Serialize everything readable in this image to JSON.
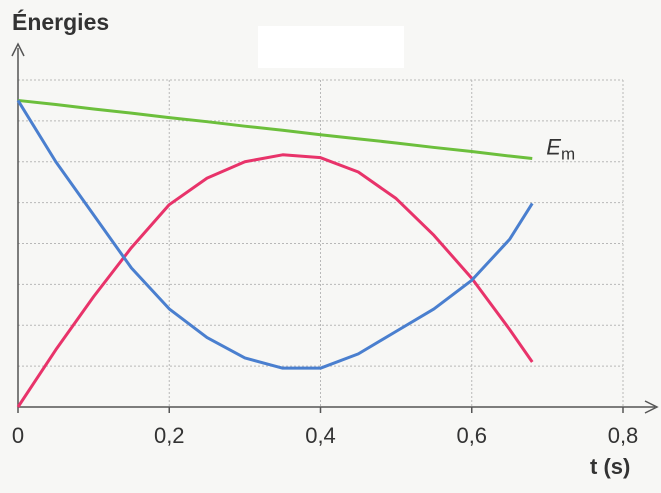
{
  "chart_data": {
    "type": "line",
    "title": "Énergies",
    "x_label": "t (s)",
    "x": [
      0,
      0.05,
      0.1,
      0.15,
      0.2,
      0.25,
      0.3,
      0.35,
      0.4,
      0.45,
      0.5,
      0.55,
      0.6,
      0.65,
      0.68
    ],
    "series": [
      {
        "name": "Em",
        "color": "#6cbf3c",
        "values": [
          7.5,
          7.4,
          7.29,
          7.19,
          7.08,
          6.98,
          6.87,
          6.77,
          6.66,
          6.56,
          6.46,
          6.35,
          6.25,
          6.14,
          6.08
        ]
      },
      {
        "color": "#e8336a",
        "values": [
          0,
          1.4,
          2.7,
          3.9,
          4.95,
          5.6,
          6.0,
          6.17,
          6.1,
          5.75,
          5.1,
          4.2,
          3.15,
          1.9,
          1.1
        ]
      },
      {
        "color": "#4a7fcf",
        "values": [
          7.5,
          6.0,
          4.7,
          3.4,
          2.4,
          1.7,
          1.2,
          0.95,
          0.95,
          1.3,
          1.85,
          2.4,
          3.1,
          4.1,
          4.98
        ]
      }
    ],
    "xlim": [
      0,
      0.8
    ],
    "ylim": [
      0,
      8
    ],
    "xticks": [
      0,
      {
        "value": 0.2,
        "label": "0,2"
      },
      {
        "value": 0.4,
        "label": "0,4"
      },
      {
        "value": 0.6,
        "label": "0,6"
      },
      {
        "value": 0.8,
        "label": "0,8"
      }
    ],
    "grid": true
  }
}
